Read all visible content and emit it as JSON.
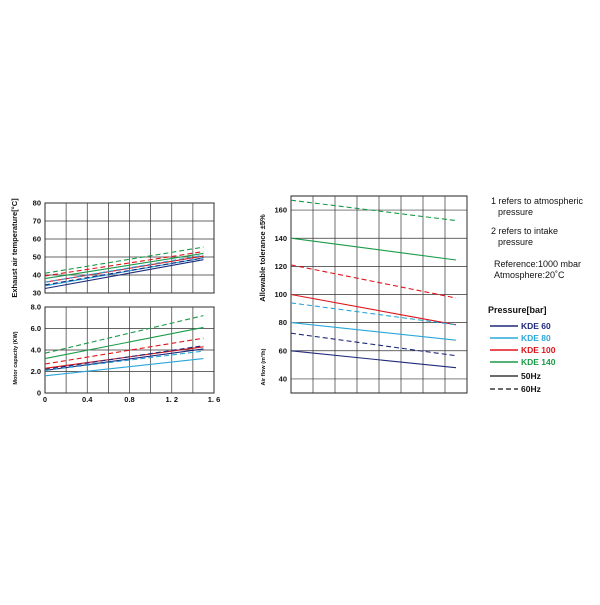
{
  "colors": {
    "KDE 60": "#1f2a7a",
    "KDE 80": "#2aa7d9",
    "KDE 100": "#e0141b",
    "KDE 140": "#1a9b48"
  },
  "chart_data": [
    {
      "id": "exhaust",
      "type": "line",
      "xlabel": "",
      "ylabel": "Exhaust air temperature[°C]",
      "xlim": [
        0,
        1.6
      ],
      "ylim": [
        30,
        80
      ],
      "xticks": [
        0,
        0.2,
        0.4,
        0.6,
        0.8,
        1.0,
        1.2,
        1.4,
        1.6
      ],
      "xticklabels": [
        "0",
        "",
        "0.4",
        "",
        "0.8",
        "",
        "1. 2",
        "",
        "1. 6"
      ],
      "yticks": [
        30,
        40,
        50,
        60,
        70,
        80
      ],
      "grid": true,
      "series": [
        {
          "model": "KDE 60",
          "freq": "50Hz",
          "x": [
            0,
            1.5
          ],
          "y": [
            32.5,
            48.5
          ]
        },
        {
          "model": "KDE 80",
          "freq": "50Hz",
          "x": [
            0,
            1.5
          ],
          "y": [
            34,
            49.5
          ]
        },
        {
          "model": "KDE 100",
          "freq": "50Hz",
          "x": [
            0,
            1.5
          ],
          "y": [
            36,
            50.5
          ]
        },
        {
          "model": "KDE 140",
          "freq": "50Hz",
          "x": [
            0,
            1.5
          ],
          "y": [
            38,
            52
          ]
        },
        {
          "model": "KDE 60",
          "freq": "60Hz",
          "x": [
            0,
            1.5
          ],
          "y": [
            34.5,
            49.5
          ]
        },
        {
          "model": "KDE 80",
          "freq": "60Hz",
          "x": [
            0,
            1.5
          ],
          "y": [
            36,
            51
          ]
        },
        {
          "model": "KDE 100",
          "freq": "60Hz",
          "x": [
            0,
            1.5
          ],
          "y": [
            39.5,
            53
          ]
        },
        {
          "model": "KDE 140",
          "freq": "60Hz",
          "x": [
            0,
            1.5
          ],
          "y": [
            41,
            55.5
          ]
        }
      ]
    },
    {
      "id": "motor",
      "type": "line",
      "xlabel": "",
      "ylabel": "Motor capacity (KW)",
      "xlim": [
        0,
        1.6
      ],
      "ylim": [
        0,
        8
      ],
      "xticks": [
        0,
        0.2,
        0.4,
        0.6,
        0.8,
        1.0,
        1.2,
        1.4,
        1.6
      ],
      "xticklabels": [
        "0",
        "",
        "0.4",
        "",
        "0.8",
        "",
        "1. 2",
        "",
        "1. 6"
      ],
      "yticks": [
        0,
        2,
        4,
        6,
        8
      ],
      "yticklabels": [
        "0",
        "2.0",
        "4.0",
        "6.0",
        "8.0"
      ],
      "grid": true,
      "series": [
        {
          "model": "KDE 60",
          "freq": "50Hz",
          "x": [
            0,
            1.5
          ],
          "y": [
            2.1,
            4.1
          ]
        },
        {
          "model": "KDE 80",
          "freq": "50Hz",
          "x": [
            0,
            1.5
          ],
          "y": [
            1.6,
            3.2
          ]
        },
        {
          "model": "KDE 100",
          "freq": "50Hz",
          "x": [
            0,
            1.5
          ],
          "y": [
            2.3,
            4.3
          ]
        },
        {
          "model": "KDE 140",
          "freq": "50Hz",
          "x": [
            0,
            1.5
          ],
          "y": [
            3.2,
            6.1
          ]
        },
        {
          "model": "KDE 60",
          "freq": "60Hz",
          "x": [
            0,
            1.5
          ],
          "y": [
            2.2,
            4.4
          ]
        },
        {
          "model": "KDE 80",
          "freq": "60Hz",
          "x": [
            0,
            1.5
          ],
          "y": [
            2.1,
            3.9
          ]
        },
        {
          "model": "KDE 100",
          "freq": "60Hz",
          "x": [
            0,
            1.5
          ],
          "y": [
            2.7,
            5.1
          ]
        },
        {
          "model": "KDE 140",
          "freq": "60Hz",
          "x": [
            0,
            1.5
          ],
          "y": [
            3.7,
            7.2
          ]
        }
      ]
    },
    {
      "id": "airflow",
      "type": "line",
      "xlabel": "",
      "ylabel": "Allowable tolerance ±5%",
      "ylabel2": "Air flow (m³/h)",
      "xlim": [
        0,
        1.6
      ],
      "ylim": [
        30,
        170
      ],
      "xticks": [
        0,
        0.2,
        0.4,
        0.6,
        0.8,
        1.0,
        1.2,
        1.4,
        1.6
      ],
      "yticks": [
        40,
        60,
        80,
        100,
        120,
        140,
        160
      ],
      "grid": true,
      "series": [
        {
          "model": "KDE 60",
          "freq": "50Hz",
          "x": [
            0,
            1.5
          ],
          "y": [
            60,
            48
          ]
        },
        {
          "model": "KDE 80",
          "freq": "50Hz",
          "x": [
            0,
            1.5
          ],
          "y": [
            80,
            67.5
          ]
        },
        {
          "model": "KDE 100",
          "freq": "50Hz",
          "x": [
            0,
            1.5
          ],
          "y": [
            100,
            78.5
          ]
        },
        {
          "model": "KDE 140",
          "freq": "50Hz",
          "x": [
            0,
            1.5
          ],
          "y": [
            140,
            124.5
          ]
        },
        {
          "model": "KDE 60",
          "freq": "60Hz",
          "x": [
            0,
            1.5
          ],
          "y": [
            72.5,
            56.5
          ]
        },
        {
          "model": "KDE 80",
          "freq": "60Hz",
          "x": [
            0,
            1.5
          ],
          "y": [
            94,
            78.5
          ]
        },
        {
          "model": "KDE 100",
          "freq": "60Hz",
          "x": [
            0,
            1.5
          ],
          "y": [
            121,
            97.5
          ]
        },
        {
          "model": "KDE 140",
          "freq": "60Hz",
          "x": [
            0,
            1.5
          ],
          "y": [
            167,
            152.5
          ]
        }
      ]
    }
  ],
  "notes": {
    "n1_line1": "1 refers to atmospheric",
    "n1_line2": "pressure",
    "n2_line1": "2 refers to intake",
    "n2_line2": "pressure",
    "ref1": "Reference:1000 mbar",
    "ref2": "Atmosphere:20˚C"
  },
  "legend": {
    "title": "Pressure[bar]",
    "models": [
      "KDE 60",
      "KDE 80",
      "KDE 100",
      "KDE 140"
    ],
    "freq_50": "50Hz",
    "freq_60": "60Hz"
  }
}
